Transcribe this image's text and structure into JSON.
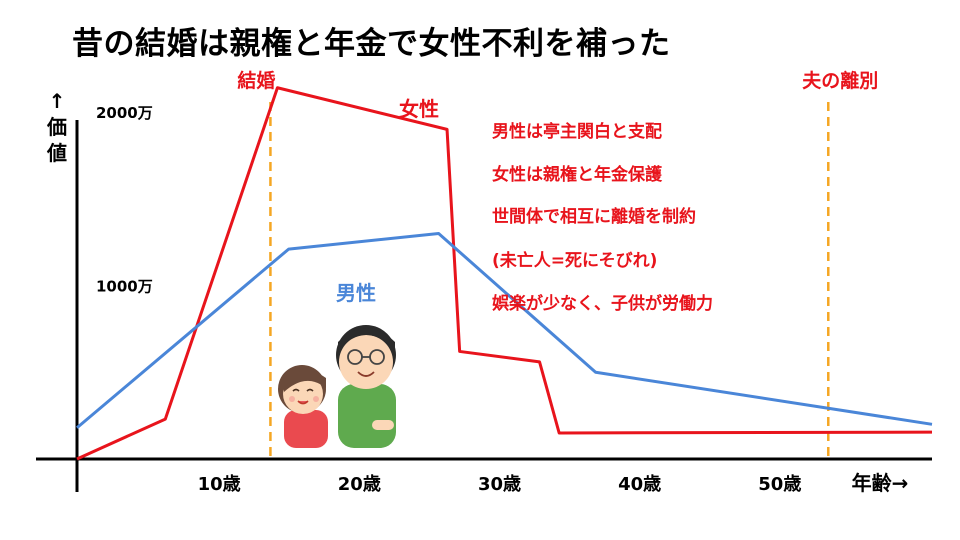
{
  "slide": {
    "title": "昔の結婚は親権と年金で女性不利を補った"
  },
  "chart_data": {
    "type": "line",
    "title": "昔の結婚は親権と年金で女性不利を補った",
    "xlabel": "年齢→",
    "ylabel": "↑価値",
    "x_ticks": [
      "10歳",
      "20歳",
      "30歳",
      "40歳",
      "50歳"
    ],
    "x_tick_values": [
      10,
      20,
      30,
      40,
      50
    ],
    "y_ticks": [
      "1000万",
      "2000万"
    ],
    "y_tick_values": [
      1000,
      2000
    ],
    "xlim": [
      0,
      61
    ],
    "ylim": [
      0,
      2300
    ],
    "grid": false,
    "series": [
      {
        "name": "女性",
        "color": "#e8141c",
        "x": [
          0,
          6.3,
          14.3,
          26.4,
          27.3,
          33.0,
          34.4,
          61
        ],
        "y": [
          0,
          230,
          2140,
          1900,
          620,
          560,
          150,
          155
        ]
      },
      {
        "name": "男性",
        "color": "#4a86d8",
        "x": [
          0,
          15.1,
          25.8,
          37.0,
          61
        ],
        "y": [
          180,
          1210,
          1300,
          500,
          200
        ]
      }
    ],
    "markers": [
      {
        "label": "結婚",
        "x": 13.8,
        "color": "#f5a623"
      },
      {
        "label": "夫の離別",
        "x": 53.6,
        "color": "#f5a623"
      }
    ],
    "annotations": [
      "男性は亭主関白と支配",
      "女性は親権と年金保護",
      "世間体で相互に離婚を制約",
      "(未亡人=死にそびれ)",
      "娯楽が少なく、子供が労働力"
    ],
    "colors": {
      "female": "#e8141c",
      "male": "#4a86d8",
      "marker": "#f5a623",
      "axis": "#000000"
    }
  },
  "illustration": {
    "icon": "couple-illustration"
  }
}
